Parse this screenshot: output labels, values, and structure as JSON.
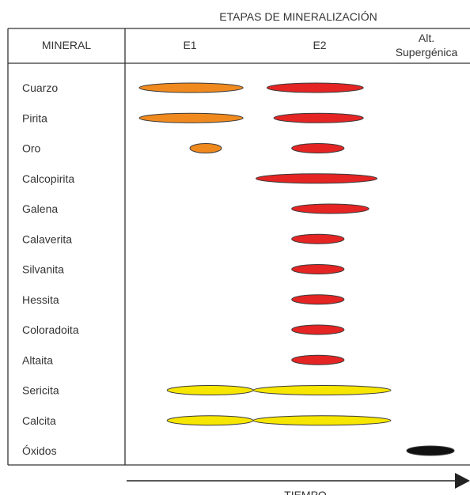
{
  "title": "ETAPAS DE MINERALIZACIÓN",
  "header": {
    "mineral": "MINERAL",
    "stages": [
      "E1",
      "E2"
    ],
    "supergene_line1": "Alt.",
    "supergene_line2": "Supergénica"
  },
  "timeline_label": "TIEMPO",
  "colors": {
    "E1": "#f08a1e",
    "E2": "#e52424",
    "alteration": "#f7e600",
    "supergene": "#111111",
    "outline": "#3a3a3a"
  },
  "minerals": [
    {
      "name": "Cuarzo",
      "bars": [
        {
          "stage": "E1",
          "color": "E1",
          "span": [
            0.1,
            0.92
          ]
        },
        {
          "stage": "E2",
          "color": "E2",
          "span": [
            0.1,
            0.8
          ]
        }
      ]
    },
    {
      "name": "Pirita",
      "bars": [
        {
          "stage": "E1",
          "color": "E1",
          "span": [
            0.1,
            0.92
          ]
        },
        {
          "stage": "E2",
          "color": "E2",
          "span": [
            0.15,
            0.8
          ]
        }
      ]
    },
    {
      "name": "Oro",
      "bars": [
        {
          "stage": "E1",
          "color": "E1",
          "span": [
            0.5,
            0.75
          ]
        },
        {
          "stage": "E2",
          "color": "E2",
          "span": [
            0.28,
            0.66
          ]
        }
      ]
    },
    {
      "name": "Calcopirita",
      "bars": [
        {
          "stage": "E2",
          "color": "E2",
          "span": [
            0.02,
            0.9
          ]
        }
      ]
    },
    {
      "name": "Galena",
      "bars": [
        {
          "stage": "E2",
          "color": "E2",
          "span": [
            0.28,
            0.84
          ]
        }
      ]
    },
    {
      "name": "Calaverita",
      "bars": [
        {
          "stage": "E2",
          "color": "E2",
          "span": [
            0.28,
            0.66
          ]
        }
      ]
    },
    {
      "name": "Silvanita",
      "bars": [
        {
          "stage": "E2",
          "color": "E2",
          "span": [
            0.28,
            0.66
          ]
        }
      ]
    },
    {
      "name": "Hessita",
      "bars": [
        {
          "stage": "E2",
          "color": "E2",
          "span": [
            0.28,
            0.66
          ]
        }
      ]
    },
    {
      "name": "Coloradoita",
      "bars": [
        {
          "stage": "E2",
          "color": "E2",
          "span": [
            0.28,
            0.66
          ]
        }
      ]
    },
    {
      "name": "Altaita",
      "bars": [
        {
          "stage": "E2",
          "color": "E2",
          "span": [
            0.28,
            0.66
          ]
        }
      ]
    },
    {
      "name": "Sericita",
      "bars": [
        {
          "stage": "E1",
          "color": "alteration",
          "span": [
            0.32,
            1.0
          ]
        },
        {
          "stage": "E2",
          "color": "alteration",
          "span": [
            0.0,
            1.0
          ]
        }
      ]
    },
    {
      "name": "Calcita",
      "bars": [
        {
          "stage": "E1",
          "color": "alteration",
          "span": [
            0.32,
            1.0
          ]
        },
        {
          "stage": "E2",
          "color": "alteration",
          "span": [
            0.0,
            1.0
          ]
        }
      ]
    },
    {
      "name": "Óxidos",
      "bars": [
        {
          "stage": "Alt. Supergénica",
          "color": "supergene",
          "span": [
            0.2,
            0.8
          ]
        }
      ]
    }
  ]
}
